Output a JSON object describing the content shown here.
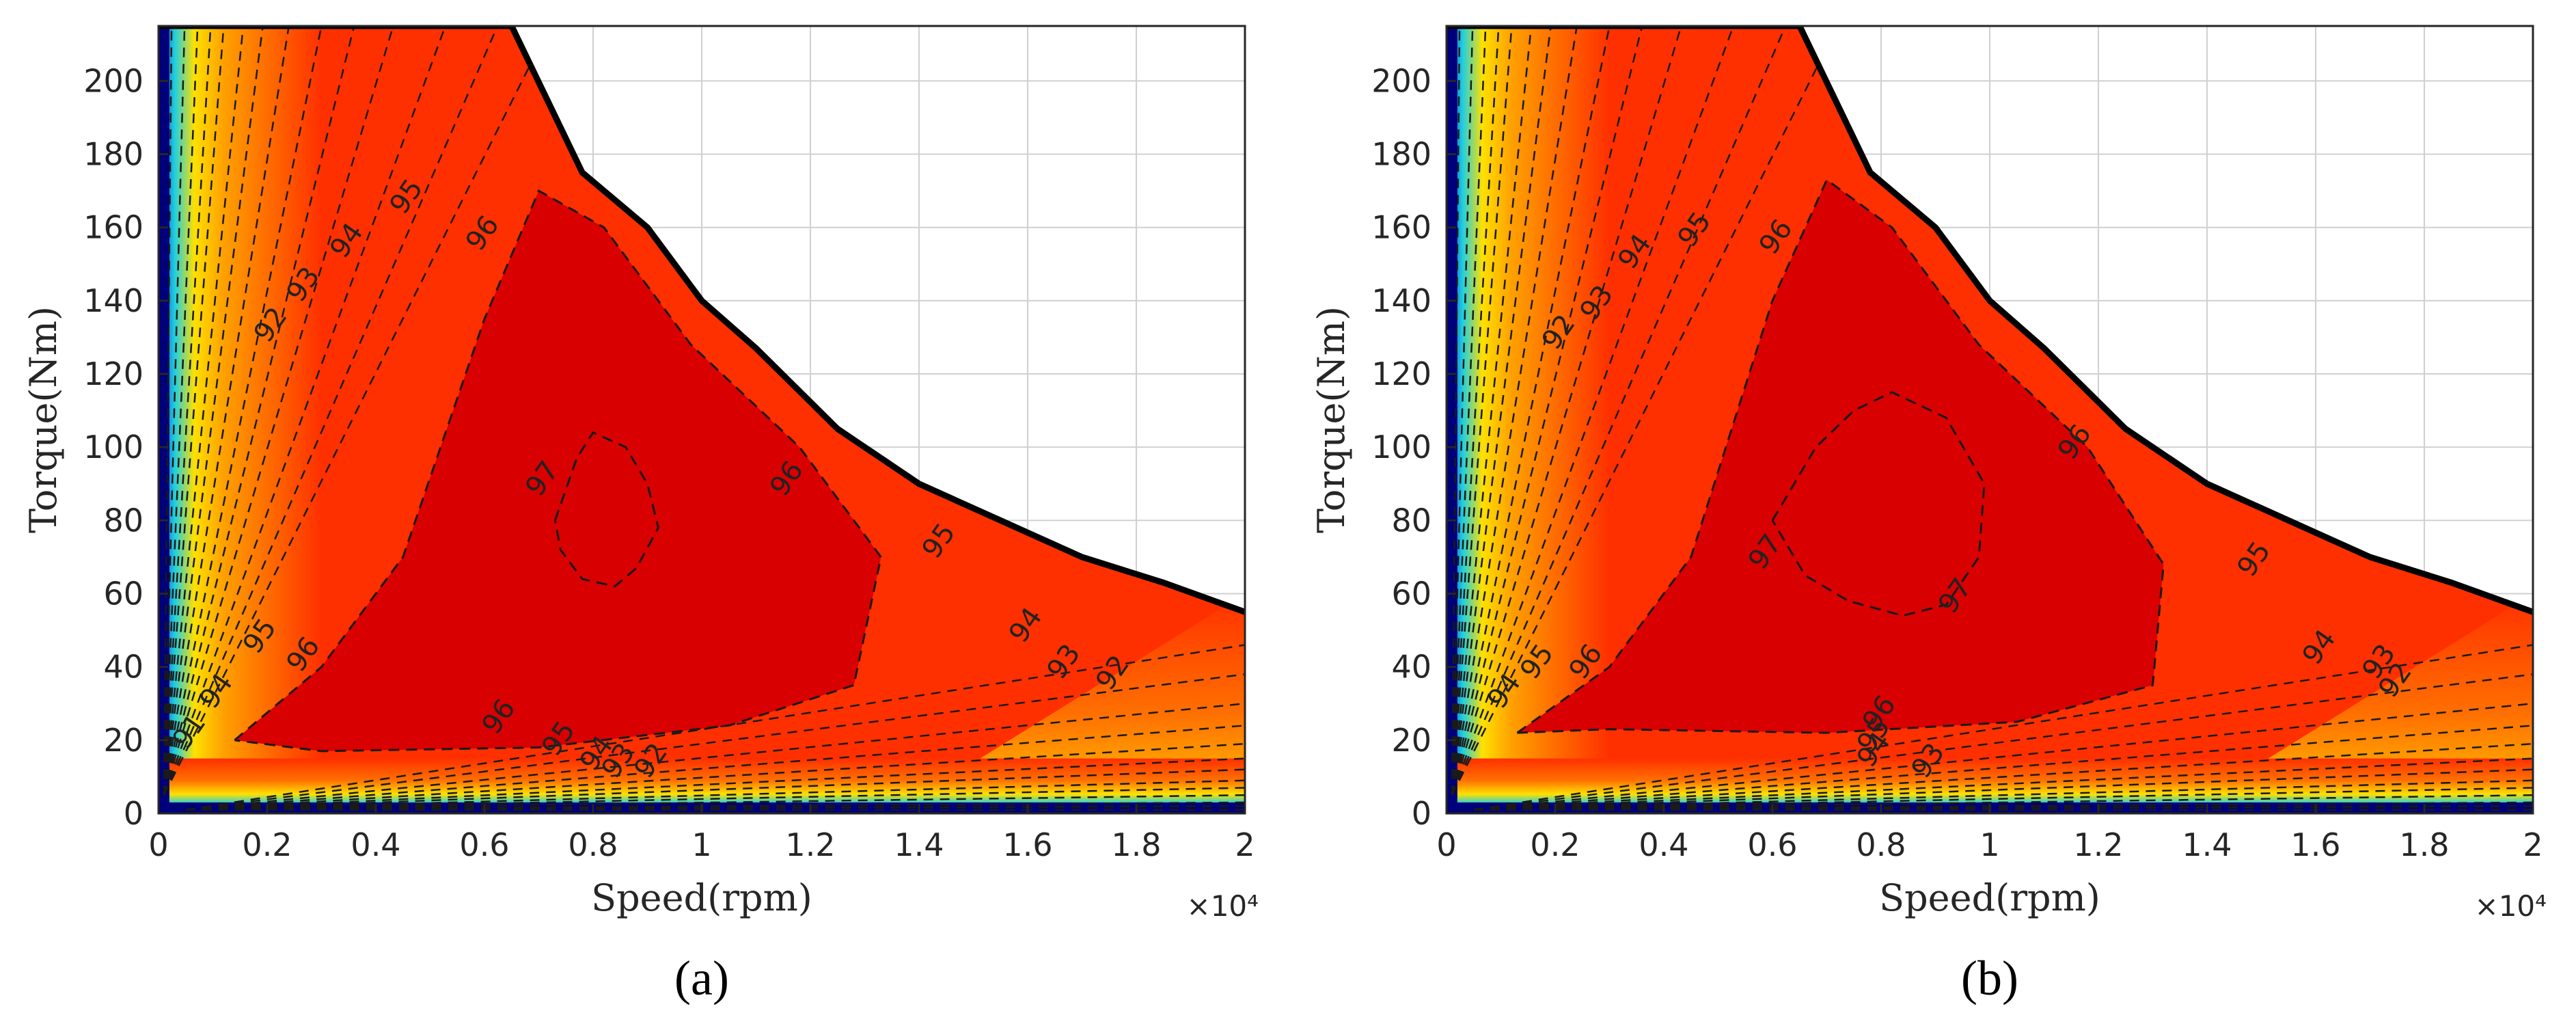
{
  "chart_data": [
    {
      "type": "contour",
      "panel_label": "(a)",
      "xlabel": "Speed(rpm)",
      "ylabel": "Torque(Nm)",
      "x_multiplier": "×10⁴",
      "xlim": [
        0,
        2
      ],
      "ylim": [
        0,
        215
      ],
      "xticks": [
        "0",
        "0.2",
        "0.4",
        "0.6",
        "0.8",
        "1",
        "1.2",
        "1.4",
        "1.6",
        "1.8",
        "2"
      ],
      "yticks": [
        "0",
        "20",
        "40",
        "60",
        "80",
        "100",
        "120",
        "140",
        "160",
        "180",
        "200"
      ],
      "grid": true,
      "envelope": [
        [
          0,
          215
        ],
        [
          0.65,
          215
        ],
        [
          0.78,
          175
        ],
        [
          0.9,
          160
        ],
        [
          1.0,
          140
        ],
        [
          1.1,
          127
        ],
        [
          1.25,
          105
        ],
        [
          1.4,
          90
        ],
        [
          1.55,
          80
        ],
        [
          1.7,
          70
        ],
        [
          1.85,
          63
        ],
        [
          2.0,
          55
        ]
      ],
      "contours": [
        {
          "level": 96,
          "points": [
            [
              0.14,
              20
            ],
            [
              0.3,
              40
            ],
            [
              0.45,
              70
            ],
            [
              0.6,
              135
            ],
            [
              0.7,
              170
            ],
            [
              0.82,
              160
            ],
            [
              0.98,
              128
            ],
            [
              1.18,
              100
            ],
            [
              1.33,
              70
            ],
            [
              1.28,
              35
            ],
            [
              1.05,
              24
            ],
            [
              0.7,
              18
            ],
            [
              0.3,
              17
            ],
            [
              0.14,
              20
            ]
          ]
        },
        {
          "level": 97,
          "points": [
            [
              0.73,
              80
            ],
            [
              0.77,
              97
            ],
            [
              0.8,
              104
            ],
            [
              0.86,
              100
            ],
            [
              0.9,
              90
            ],
            [
              0.92,
              78
            ],
            [
              0.88,
              67
            ],
            [
              0.84,
              62
            ],
            [
              0.78,
              64
            ],
            [
              0.74,
              72
            ],
            [
              0.73,
              80
            ]
          ]
        }
      ],
      "contour_labels": [
        {
          "text": "95",
          "x": 0.47,
          "y": 167
        },
        {
          "text": "96",
          "x": 0.61,
          "y": 157
        },
        {
          "text": "94",
          "x": 0.36,
          "y": 155
        },
        {
          "text": "93",
          "x": 0.28,
          "y": 143
        },
        {
          "text": "92",
          "x": 0.22,
          "y": 132
        },
        {
          "text": "97",
          "x": 0.72,
          "y": 90
        },
        {
          "text": "96",
          "x": 1.17,
          "y": 90
        },
        {
          "text": "95",
          "x": 1.45,
          "y": 73
        },
        {
          "text": "94",
          "x": 1.61,
          "y": 50
        },
        {
          "text": "93",
          "x": 1.68,
          "y": 40
        },
        {
          "text": "92",
          "x": 1.77,
          "y": 37
        },
        {
          "text": "95",
          "x": 0.2,
          "y": 47
        },
        {
          "text": "96",
          "x": 0.28,
          "y": 42
        },
        {
          "text": "96",
          "x": 0.64,
          "y": 25
        },
        {
          "text": "95",
          "x": 0.75,
          "y": 19
        },
        {
          "text": "94",
          "x": 0.82,
          "y": 15
        },
        {
          "text": "93",
          "x": 0.86,
          "y": 13
        },
        {
          "text": "92",
          "x": 0.92,
          "y": 13
        },
        {
          "text": "91",
          "x": 0.07,
          "y": 21
        },
        {
          "text": "94",
          "x": 0.12,
          "y": 32
        }
      ]
    },
    {
      "type": "contour",
      "panel_label": "(b)",
      "xlabel": "Speed(rpm)",
      "ylabel": "Torque(Nm)",
      "x_multiplier": "×10⁴",
      "xlim": [
        0,
        2
      ],
      "ylim": [
        0,
        215
      ],
      "xticks": [
        "0",
        "0.2",
        "0.4",
        "0.6",
        "0.8",
        "1",
        "1.2",
        "1.4",
        "1.6",
        "1.8",
        "2"
      ],
      "yticks": [
        "0",
        "20",
        "40",
        "60",
        "80",
        "100",
        "120",
        "140",
        "160",
        "180",
        "200"
      ],
      "grid": true,
      "envelope": [
        [
          0,
          215
        ],
        [
          0.65,
          215
        ],
        [
          0.78,
          175
        ],
        [
          0.9,
          160
        ],
        [
          1.0,
          140
        ],
        [
          1.1,
          127
        ],
        [
          1.25,
          105
        ],
        [
          1.4,
          90
        ],
        [
          1.55,
          80
        ],
        [
          1.7,
          70
        ],
        [
          1.85,
          63
        ],
        [
          2.0,
          55
        ]
      ],
      "contours": [
        {
          "level": 96,
          "points": [
            [
              0.13,
              22
            ],
            [
              0.3,
              40
            ],
            [
              0.45,
              70
            ],
            [
              0.6,
              140
            ],
            [
              0.7,
              173
            ],
            [
              0.82,
              160
            ],
            [
              0.98,
              128
            ],
            [
              1.18,
              100
            ],
            [
              1.32,
              68
            ],
            [
              1.3,
              35
            ],
            [
              1.05,
              25
            ],
            [
              0.7,
              22
            ],
            [
              0.3,
              23
            ],
            [
              0.13,
              22
            ]
          ]
        },
        {
          "level": 97,
          "points": [
            [
              0.6,
              80
            ],
            [
              0.68,
              100
            ],
            [
              0.75,
              110
            ],
            [
              0.82,
              115
            ],
            [
              0.92,
              108
            ],
            [
              0.99,
              90
            ],
            [
              0.98,
              70
            ],
            [
              0.92,
              57
            ],
            [
              0.84,
              54
            ],
            [
              0.74,
              58
            ],
            [
              0.66,
              65
            ],
            [
              0.6,
              80
            ]
          ]
        }
      ],
      "contour_labels": [
        {
          "text": "95",
          "x": 0.47,
          "y": 158
        },
        {
          "text": "96",
          "x": 0.62,
          "y": 156
        },
        {
          "text": "94",
          "x": 0.36,
          "y": 152
        },
        {
          "text": "93",
          "x": 0.29,
          "y": 138
        },
        {
          "text": "92",
          "x": 0.22,
          "y": 130
        },
        {
          "text": "97",
          "x": 0.6,
          "y": 70
        },
        {
          "text": "97",
          "x": 0.95,
          "y": 58
        },
        {
          "text": "96",
          "x": 1.17,
          "y": 100
        },
        {
          "text": "95",
          "x": 1.5,
          "y": 68
        },
        {
          "text": "94",
          "x": 1.62,
          "y": 44
        },
        {
          "text": "93",
          "x": 1.73,
          "y": 40
        },
        {
          "text": "92",
          "x": 1.76,
          "y": 35
        },
        {
          "text": "95",
          "x": 0.18,
          "y": 40
        },
        {
          "text": "96",
          "x": 0.27,
          "y": 40
        },
        {
          "text": "96",
          "x": 0.81,
          "y": 26
        },
        {
          "text": "95",
          "x": 0.8,
          "y": 20
        },
        {
          "text": "94",
          "x": 0.8,
          "y": 16
        },
        {
          "text": "93",
          "x": 0.9,
          "y": 13
        },
        {
          "text": "94",
          "x": 0.12,
          "y": 32
        }
      ]
    }
  ],
  "colors": {
    "core": "#d80000",
    "inner": "#f01000",
    "mid": "#ff3000",
    "orange": "#ff7000",
    "amber": "#ffa000",
    "yellow": "#ffe000",
    "cyan": "#20d0e0",
    "blue": "#1030c0",
    "navy": "#00007a",
    "grid": "#d0d0d0",
    "axis": "#262626"
  }
}
